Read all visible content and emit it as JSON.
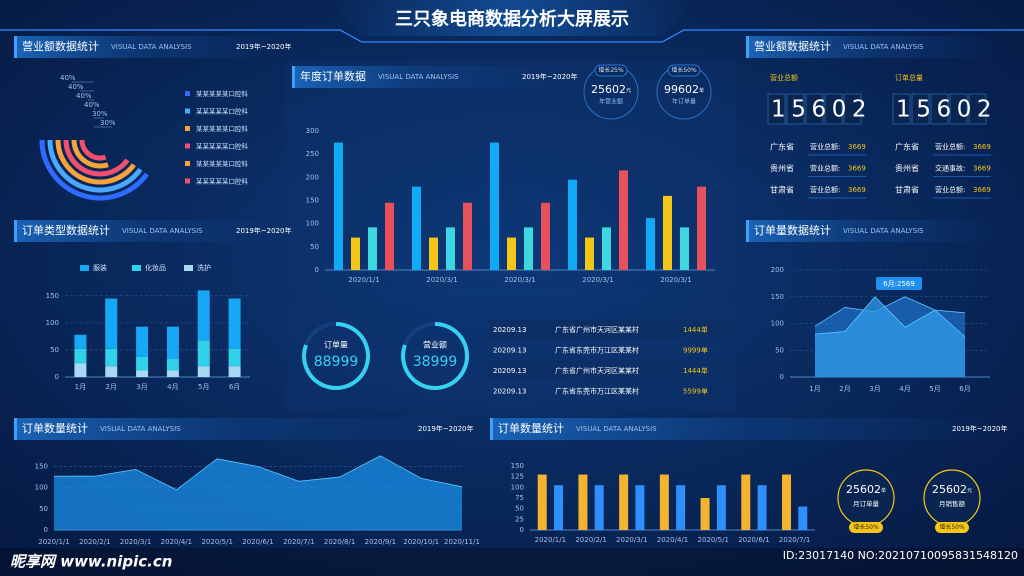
{
  "header": {
    "title": "三只象电商数据分析大屏展示"
  },
  "panels": [
    {
      "title": "营业额数据统计",
      "subtitle": "VISUAL DATA ANALYSIS",
      "period": "2019年~2020年"
    },
    {
      "title": "订单类型数据统计",
      "subtitle": "VISUAL DATA ANALYSIS",
      "period": "2019年~2020年"
    },
    {
      "title": "订单数量统计",
      "subtitle": "VISUAL DATA ANALYSIS",
      "period": "2019年~2020年"
    },
    {
      "title": "年度订单数据",
      "subtitle": "VISUAL DATA ANALYSIS",
      "period": "2019年~2020年"
    },
    {
      "title": "营业额数据统计",
      "subtitle": "VISUAL DATA ANALYSIS"
    },
    {
      "title": "订单量数据统计",
      "subtitle": "VISUAL DATA ANALYSIS"
    },
    {
      "title": "订单数量统计",
      "subtitle": "VISUAL DATA ANALYSIS",
      "period": "2019年~2020年"
    }
  ],
  "kpi_top": [
    {
      "badge": "增长25%",
      "value": "25602",
      "unit": "元",
      "label": "年营业额"
    },
    {
      "badge": "增长50%",
      "value": "99602",
      "unit": "单",
      "label": "年订单量"
    }
  ],
  "kpi_mid": [
    {
      "label": "订单量",
      "value": "88999"
    },
    {
      "label": "营业额",
      "value": "38999"
    }
  ],
  "table": {
    "rows": [
      [
        "20209.13",
        "广东省广州市天河区某某村",
        "1444单"
      ],
      [
        "20209.13",
        "广东省东莞市万江区某某村",
        "9999单"
      ],
      [
        "20209.13",
        "广东省广州市天河区某某村",
        "1444单"
      ],
      [
        "20209.13",
        "广东省东莞市万江区某某村",
        "5599单"
      ]
    ]
  },
  "totals": [
    {
      "label": "营业总额",
      "value": "15602",
      "rows": [
        [
          "广东省",
          "营业总额:",
          "3669"
        ],
        [
          "贵州省",
          "营业总额:",
          "3669"
        ],
        [
          "甘肃省",
          "营业总额:",
          "3669"
        ]
      ]
    },
    {
      "label": "订单总量",
      "value": "15602",
      "rows": [
        [
          "广东省",
          "营业总额:",
          "3669"
        ],
        [
          "贵州省",
          "交通事故:",
          "3669"
        ],
        [
          "甘肃省",
          "营业总额:",
          "3669"
        ]
      ]
    }
  ],
  "kpi_bottom": [
    {
      "value": "25602",
      "unit": "单",
      "label": "月订单量",
      "badge": "增长50%"
    },
    {
      "value": "25602",
      "unit": "元",
      "label": "月销售额",
      "badge": "增长50%"
    }
  ],
  "watermark": {
    "site": "昵享网 www.nipic.cn",
    "id": "ID:23017140 NO:20210710095831548120"
  },
  "chart_data": [
    {
      "type": "radial",
      "values": [
        40,
        40,
        40,
        40,
        30,
        30
      ],
      "value_labels": [
        "40%",
        "40%",
        "40%",
        "40%",
        "30%",
        "30%"
      ],
      "categories": [
        "某某某某某口腔科",
        "某某某某某口腔科",
        "某某某某某口腔科",
        "某某某某某口腔科",
        "某某某某某口腔科",
        "某某某某某口腔科"
      ],
      "colors": [
        "#2f6bff",
        "#4aa8ff",
        "#f7a23b",
        "#f0506e",
        "#f7a23b",
        "#f0506e"
      ]
    },
    {
      "type": "bar",
      "stacked": true,
      "categories": [
        "1月",
        "2月",
        "3月",
        "4月",
        "5月",
        "6月"
      ],
      "series": [
        {
          "name": "服装",
          "color": "#16a8f5",
          "values": [
            26,
            93,
            56,
            59,
            92,
            93
          ]
        },
        {
          "name": "化妆品",
          "color": "#2fd2e8",
          "values": [
            27,
            32,
            25,
            22,
            48,
            32
          ]
        },
        {
          "name": "洗护",
          "color": "#a9d8f2",
          "values": [
            25,
            20,
            12,
            12,
            20,
            20
          ]
        }
      ],
      "ylim": [
        0,
        170
      ],
      "yticks": [
        0,
        50,
        100,
        150
      ],
      "grid": true
    },
    {
      "type": "area",
      "categories": [
        "2020/1/1",
        "2020/2/1",
        "2020/3/1",
        "2020/4/1",
        "2020/5/1",
        "2020/6/1",
        "2020/7/1",
        "2020/8/1",
        "2020/9/1",
        "2020/10/1",
        "2020/11/1"
      ],
      "series": [
        {
          "color": "#1a8fe8",
          "values": [
            127,
            127,
            143,
            95,
            168,
            150,
            115,
            125,
            175,
            122,
            102
          ]
        }
      ],
      "ylim": [
        0,
        170
      ],
      "yticks": [
        0,
        50,
        100,
        150
      ],
      "grid": true
    },
    {
      "type": "bar",
      "categories": [
        "2020/1/1",
        "2020/3/1",
        "2020/3/1",
        "2020/3/1",
        "2020/3/1"
      ],
      "series": [
        {
          "color": "#11aaf7",
          "values": [
            275,
            180,
            275,
            195,
            112
          ]
        },
        {
          "color": "#f5c518",
          "values": [
            70,
            70,
            70,
            70,
            160
          ]
        },
        {
          "color": "#3ed6e0",
          "values": [
            92,
            92,
            92,
            92,
            92
          ]
        },
        {
          "color": "#e8505b",
          "values": [
            145,
            145,
            145,
            215,
            180
          ]
        }
      ],
      "ylim": [
        0,
        300
      ],
      "yticks": [
        0,
        50,
        100,
        150,
        200,
        250,
        300
      ],
      "grid": false
    },
    {
      "type": "area",
      "categories": [
        "1月",
        "2月",
        "3月",
        "4月",
        "5月",
        "6月"
      ],
      "series": [
        {
          "color": "#1d6fc4",
          "values": [
            95,
            130,
            122,
            150,
            125,
            120
          ]
        },
        {
          "color": "#2f9bea",
          "values": [
            80,
            85,
            150,
            93,
            125,
            75
          ]
        }
      ],
      "ylim": [
        0,
        200
      ],
      "yticks": [
        0,
        50,
        100,
        150,
        200
      ],
      "grid": true,
      "annotation": "6月:2569"
    },
    {
      "type": "bar",
      "categories": [
        "2020/1/1",
        "2020/2/1",
        "2020/3/1",
        "2020/4/1",
        "2020/5/1",
        "2020/6/1",
        "2020/7/1"
      ],
      "series": [
        {
          "color": "#f5b430",
          "values": [
            130,
            130,
            130,
            130,
            75,
            130,
            130
          ]
        },
        {
          "color": "#2e8fff",
          "values": [
            105,
            105,
            105,
            105,
            105,
            105,
            55
          ]
        }
      ],
      "ylim": [
        0,
        150
      ],
      "yticks": [
        0,
        25,
        50,
        75,
        100,
        125,
        150
      ],
      "grid": false
    }
  ]
}
